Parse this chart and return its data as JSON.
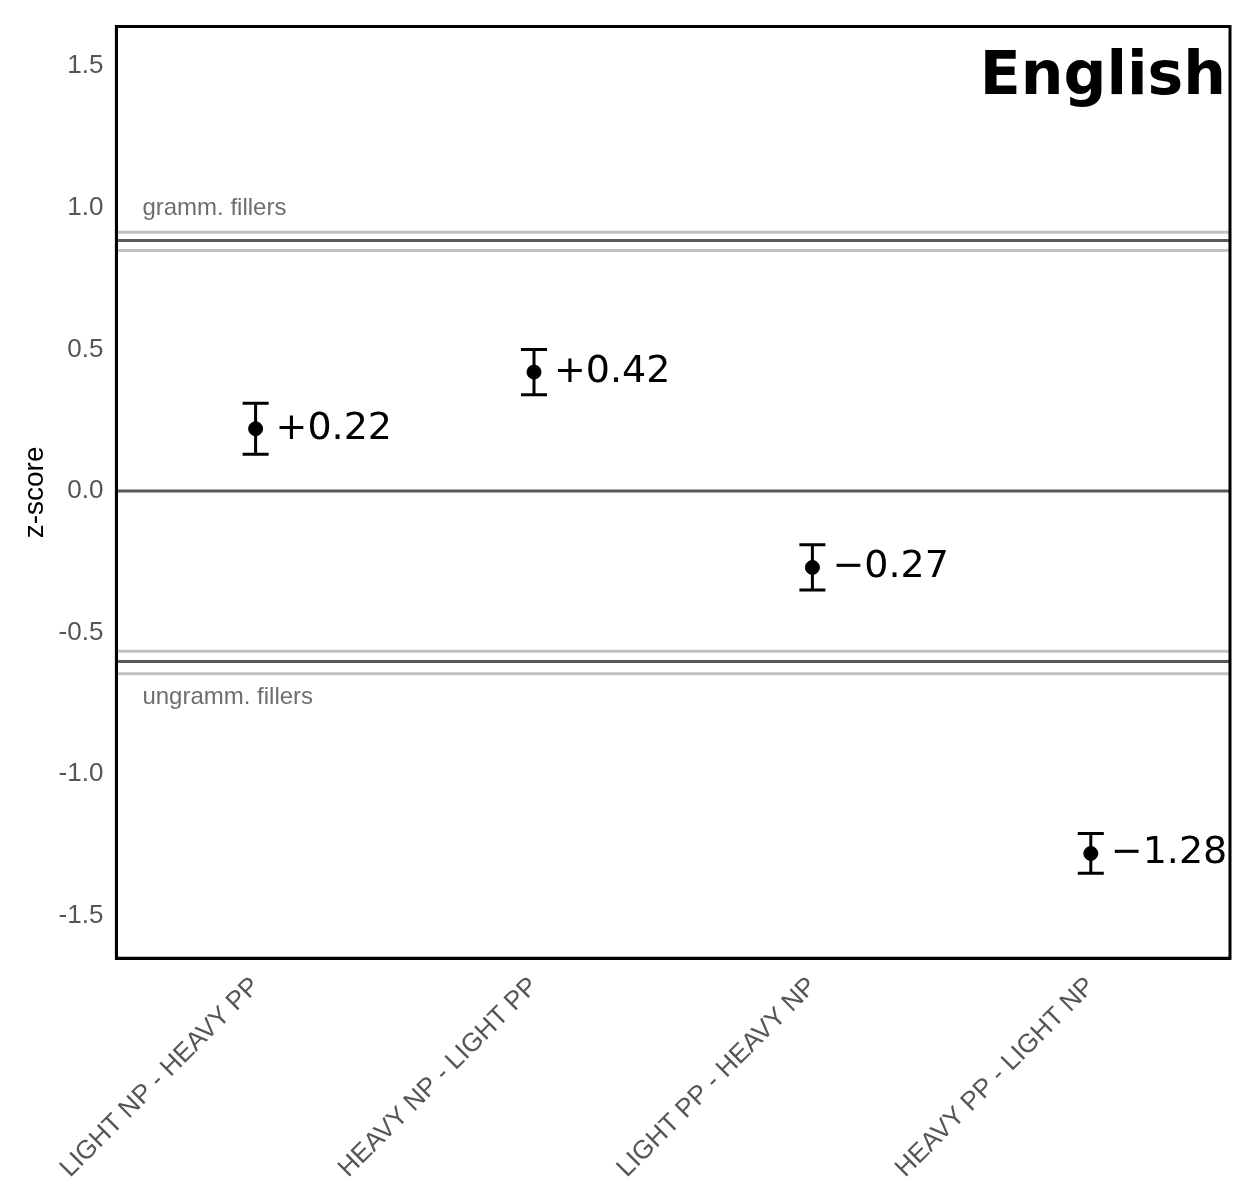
{
  "chart_data": {
    "type": "scatter",
    "title": "English",
    "ylabel": "z-score",
    "categories": [
      "LIGHT NP - HEAVY PP",
      "HEAVY NP - LIGHT PP",
      "LIGHT PP - HEAVY NP",
      "HEAVY PP - LIGHT NP"
    ],
    "series": [
      {
        "color": "#000000",
        "values": [
          0.22,
          0.42,
          -0.27,
          -1.28
        ],
        "errors": [
          0.09,
          0.08,
          0.08,
          0.07
        ],
        "value_labels": [
          "+0.22",
          "+0.42",
          "−0.27",
          "−1.28"
        ]
      }
    ],
    "ylim": [
      -1.65,
      1.64
    ],
    "yticks": [
      {
        "value": -1.5,
        "label": "-1.5"
      },
      {
        "value": -1,
        "label": "-1.0"
      },
      {
        "value": -0.5,
        "label": "-0.5"
      },
      {
        "value": 0,
        "label": "0.0"
      },
      {
        "value": 0.5,
        "label": "0.5"
      },
      {
        "value": 1,
        "label": "1.0"
      },
      {
        "value": 1.5,
        "label": "1.5"
      }
    ],
    "ref_lines": [
      {
        "axis": "y",
        "value": 0,
        "color": "#595959"
      },
      {
        "axis": "y",
        "value": 0.914,
        "color": "#c0c0c0"
      },
      {
        "axis": "y",
        "value": 0.885,
        "color": "#595959",
        "label": "gramm. fillers"
      },
      {
        "axis": "y",
        "value": 0.849,
        "color": "#c0c0c0"
      },
      {
        "axis": "y",
        "value": -0.566,
        "color": "#c0c0c0"
      },
      {
        "axis": "y",
        "value": -0.602,
        "color": "#595959",
        "label": "ungramm. fillers"
      },
      {
        "axis": "y",
        "value": -0.645,
        "color": "#c0c0c0"
      }
    ],
    "marker": "circle",
    "grid": false,
    "legend": false
  }
}
